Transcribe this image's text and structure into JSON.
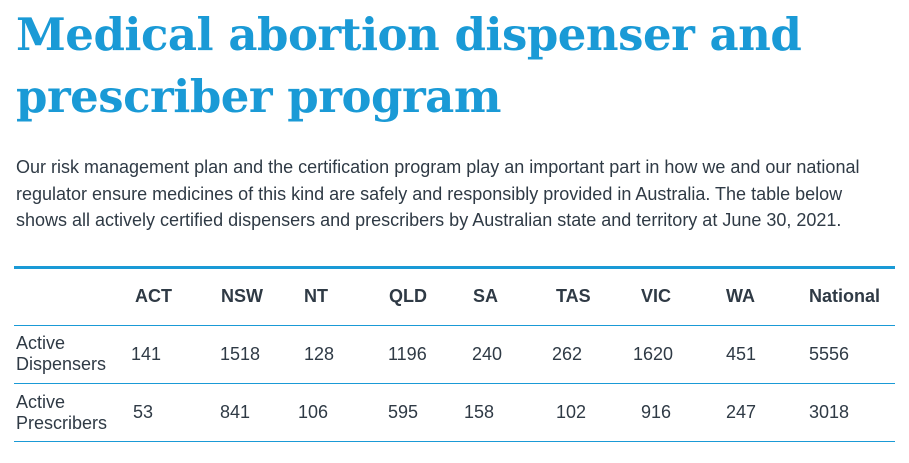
{
  "title": "Medical abortion dispenser and prescriber program",
  "intro": "Our risk management plan and the certification program play an important part in how we and our national regulator ensure medicines of this kind are safely and responsibly provided in Australia. The table below shows all actively certified dispensers and prescribers by Australian state and territory at June 30, 2021.",
  "table": {
    "headers": [
      "ACT",
      "NSW",
      "NT",
      "QLD",
      "SA",
      "TAS",
      "VIC",
      "WA",
      "National"
    ],
    "rows": [
      {
        "label": "Active Dispensers",
        "values": [
          "141",
          "1518",
          "128",
          "1196",
          "240",
          "262",
          "1620",
          "451",
          "5556"
        ]
      },
      {
        "label": "Active Prescribers",
        "values": [
          "53",
          "841",
          "106",
          "595",
          "158",
          "102",
          "916",
          "247",
          "3018"
        ]
      }
    ]
  },
  "colors": {
    "accent": "#1a9ad6",
    "text": "#2f3a45"
  }
}
